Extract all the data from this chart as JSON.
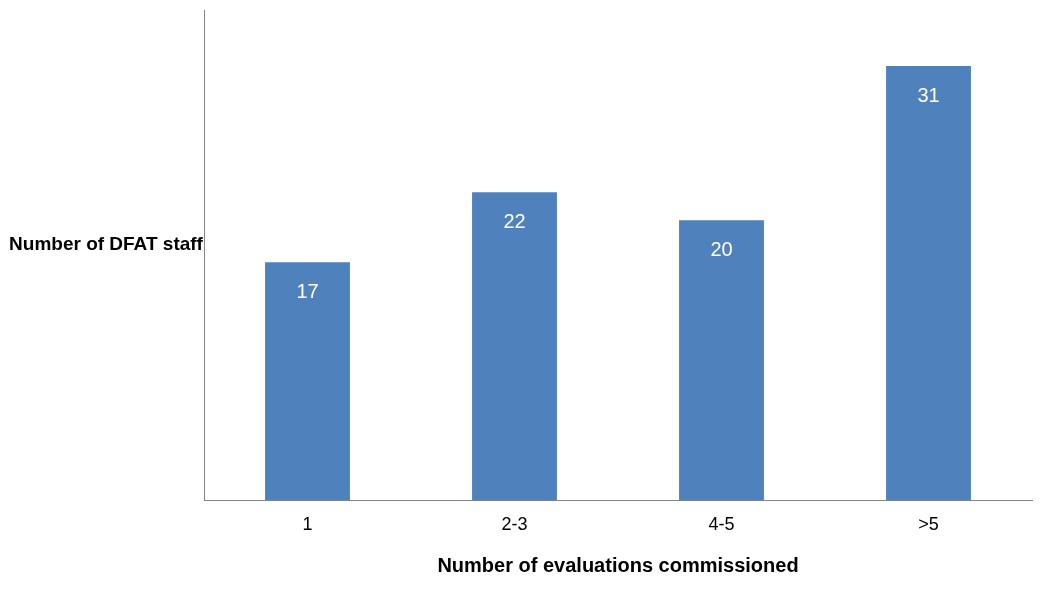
{
  "chart_data": {
    "type": "bar",
    "xlabel": "Number of evaluations commissioned",
    "ylabel": "Number of DFAT staff",
    "categories": [
      "1",
      "2-3",
      "4-5",
      ">5"
    ],
    "values": [
      17,
      22,
      20,
      31
    ],
    "color": "#4f81bd",
    "ylim": [
      0,
      35
    ],
    "tick_labels": "x",
    "data_labels": true,
    "grid": false,
    "legend": false
  }
}
